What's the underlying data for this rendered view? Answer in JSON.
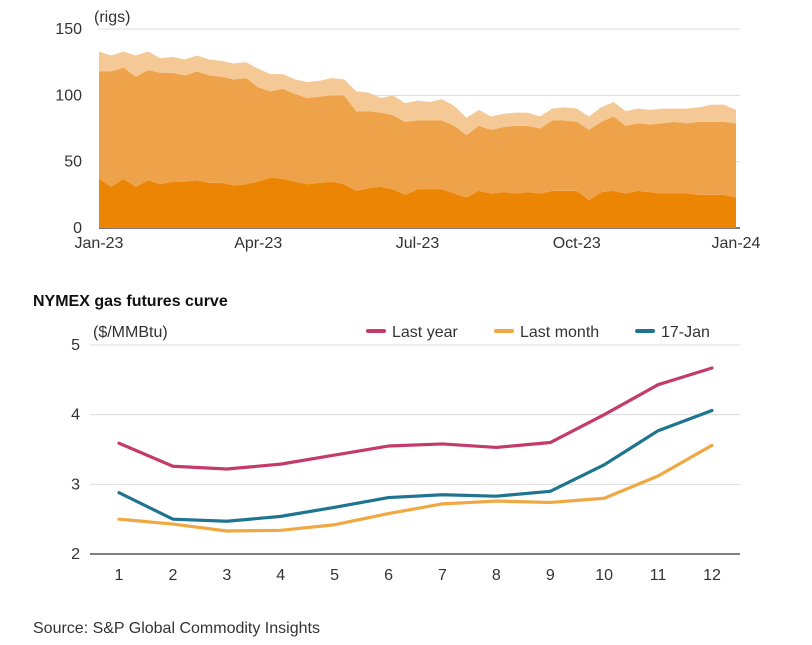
{
  "source": "Source: S&P Global Commodity Insights",
  "chart_data": [
    {
      "type": "area",
      "title": "",
      "unit_label": "(rigs)",
      "stacked": true,
      "ylim": [
        0,
        150
      ],
      "yticks": [
        0,
        50,
        100,
        150
      ],
      "x_range": [
        0,
        52
      ],
      "xticks": [
        {
          "x": 0,
          "label": "Jan-23"
        },
        {
          "x": 13,
          "label": "Apr-23"
        },
        {
          "x": 26,
          "label": "Jul-23"
        },
        {
          "x": 39,
          "label": "Oct-23"
        },
        {
          "x": 52,
          "label": "Jan-24"
        }
      ],
      "grid": true,
      "x": [
        0,
        1,
        2,
        3,
        4,
        5,
        6,
        7,
        8,
        9,
        10,
        11,
        12,
        13,
        14,
        15,
        16,
        17,
        18,
        19,
        20,
        21,
        22,
        23,
        24,
        25,
        26,
        27,
        28,
        29,
        30,
        31,
        32,
        33,
        34,
        35,
        36,
        37,
        38,
        39,
        40,
        41,
        42,
        43,
        44,
        45,
        46,
        47,
        48,
        49,
        50,
        51,
        52
      ],
      "series": [
        {
          "color": "#ec8404",
          "values": [
            37,
            31,
            37,
            31,
            36,
            33,
            35,
            35,
            36,
            34,
            34,
            32,
            33,
            35,
            38,
            37,
            35,
            33,
            34,
            35,
            33,
            28,
            30,
            31,
            29,
            25,
            29,
            29,
            29,
            26,
            23,
            28,
            26,
            27,
            26,
            27,
            26,
            28,
            28,
            28,
            21,
            27,
            28,
            26,
            28,
            27,
            26,
            26,
            26,
            25,
            25,
            25,
            23
          ]
        },
        {
          "color": "#eea24a",
          "values": [
            81,
            87,
            84,
            83,
            83,
            84,
            82,
            80,
            82,
            81,
            80,
            80,
            80,
            71,
            65,
            68,
            66,
            65,
            65,
            65,
            67,
            60,
            58,
            56,
            56,
            55,
            52,
            52,
            52,
            51,
            47,
            49,
            48,
            49,
            51,
            50,
            49,
            53,
            53,
            52,
            53,
            53,
            56,
            51,
            51,
            51,
            53,
            54,
            53,
            55,
            55,
            55,
            56
          ]
        },
        {
          "color": "#f5c995",
          "values": [
            15,
            12,
            12,
            16,
            14,
            11,
            12,
            12,
            12,
            12,
            12,
            12,
            12,
            14,
            13,
            11,
            11,
            12,
            12,
            13,
            12,
            15,
            14,
            11,
            15,
            14,
            15,
            14,
            16,
            15,
            13,
            12,
            10,
            10,
            10,
            10,
            9,
            9,
            10,
            10,
            10,
            11,
            11,
            11,
            11,
            11,
            11,
            10,
            11,
            11,
            13,
            13,
            10
          ]
        }
      ]
    },
    {
      "type": "line",
      "title": "NYMEX gas futures curve",
      "unit_label": "($/MMBtu)",
      "ylim": [
        2,
        5
      ],
      "yticks": [
        2,
        3,
        4,
        5
      ],
      "categories": [
        "1",
        "2",
        "3",
        "4",
        "5",
        "6",
        "7",
        "8",
        "9",
        "10",
        "11",
        "12"
      ],
      "grid": true,
      "legend": "top-right",
      "series": [
        {
          "name": "Last year",
          "color": "#c43b6b",
          "values": [
            3.59,
            3.26,
            3.22,
            3.29,
            3.42,
            3.55,
            3.58,
            3.53,
            3.6,
            4.0,
            4.43,
            4.67
          ]
        },
        {
          "name": "Last month",
          "color": "#f0a842",
          "values": [
            2.5,
            2.43,
            2.33,
            2.34,
            2.42,
            2.58,
            2.72,
            2.76,
            2.74,
            2.8,
            3.12,
            3.56
          ]
        },
        {
          "name": "17-Jan",
          "color": "#1f7590",
          "values": [
            2.88,
            2.5,
            2.47,
            2.54,
            2.67,
            2.81,
            2.85,
            2.83,
            2.9,
            3.28,
            3.77,
            4.06
          ]
        }
      ]
    }
  ]
}
